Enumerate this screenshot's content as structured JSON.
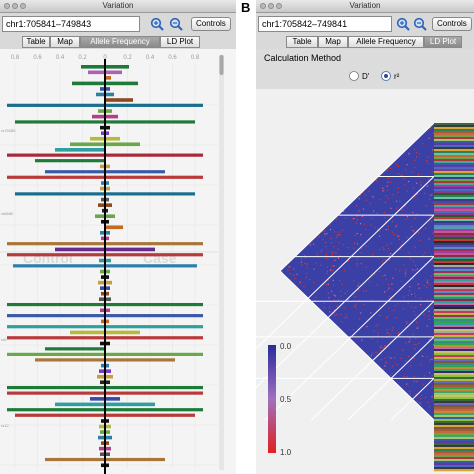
{
  "panel_labels": {
    "a": "",
    "b": "B"
  },
  "panelA": {
    "window_title": "Variation",
    "region": "chr1:705841–749843",
    "controls_label": "Controls",
    "tabs": [
      {
        "label": "Table",
        "selected": false
      },
      {
        "label": "Map",
        "selected": false
      },
      {
        "label": "Allele Frequency",
        "selected": true
      },
      {
        "label": "LD Plot",
        "selected": false
      }
    ],
    "axis_ticks": [
      "0.8",
      "0.6",
      "0.4",
      "0.2",
      "0",
      "0.2",
      "0.4",
      "0.6",
      "0.8"
    ],
    "watermark": {
      "left": "Control",
      "right": "Case"
    },
    "side_labels": [
      "rs75086",
      "rs6680",
      "rs5",
      "rs12"
    ],
    "bars": [
      {
        "freq": 0.24,
        "side": "both",
        "color": "#1f7a3a"
      },
      {
        "freq": 0.17,
        "side": "both",
        "color": "#b05fb6"
      },
      {
        "freq": 0.06,
        "side": "right",
        "color": "#c46a1f"
      },
      {
        "freq": 0.33,
        "side": "both",
        "color": "#1f7a3a"
      },
      {
        "freq": 0.05,
        "side": "both",
        "color": "#3a4aa8"
      },
      {
        "freq": 0.09,
        "side": "both",
        "color": "#2e7ea8"
      },
      {
        "freq": 0.28,
        "side": "right",
        "color": "#8a4a1f"
      },
      {
        "freq": 0.98,
        "side": "both",
        "color": "#1a6d8c"
      },
      {
        "freq": 0.07,
        "side": "both",
        "color": "#6aa64a"
      },
      {
        "freq": 0.13,
        "side": "both",
        "color": "#b83b8c"
      },
      {
        "freq": 0.9,
        "side": "both",
        "color": "#1f7a3a"
      },
      {
        "freq": 0.05,
        "side": "both",
        "color": "#111111"
      },
      {
        "freq": 0.04,
        "side": "both",
        "color": "#7a3bc4"
      },
      {
        "freq": 0.15,
        "side": "both",
        "color": "#b8b83b"
      },
      {
        "freq": 0.35,
        "side": "both",
        "color": "#6aa64a"
      },
      {
        "freq": 0.5,
        "side": "left",
        "color": "#2e9e9e"
      },
      {
        "freq": 0.98,
        "side": "both",
        "color": "#a82a3a"
      },
      {
        "freq": 0.7,
        "side": "left",
        "color": "#1f7a3a"
      },
      {
        "freq": 0.05,
        "side": "both",
        "color": "#c4a03b"
      },
      {
        "freq": 0.6,
        "side": "both",
        "color": "#3a5aa8"
      },
      {
        "freq": 0.98,
        "side": "both",
        "color": "#b83b3b"
      },
      {
        "freq": 0.04,
        "side": "both",
        "color": "#2e7ea8"
      },
      {
        "freq": 0.05,
        "side": "both",
        "color": "#c4a03b"
      },
      {
        "freq": 0.9,
        "side": "both",
        "color": "#1a6d8c"
      },
      {
        "freq": 0.04,
        "side": "both",
        "color": "#555555"
      },
      {
        "freq": 0.07,
        "side": "both",
        "color": "#8a4a1f"
      },
      {
        "freq": 0.03,
        "side": "both",
        "color": "#222222"
      },
      {
        "freq": 0.1,
        "side": "both",
        "color": "#6aa64a"
      },
      {
        "freq": 0.04,
        "side": "both",
        "color": "#111111"
      },
      {
        "freq": 0.18,
        "side": "right",
        "color": "#c46a1f"
      },
      {
        "freq": 0.05,
        "side": "both",
        "color": "#2e7ea8"
      },
      {
        "freq": 0.04,
        "side": "both",
        "color": "#b83b8c"
      },
      {
        "freq": 0.98,
        "side": "both",
        "color": "#a8763b"
      },
      {
        "freq": 0.5,
        "side": "both",
        "color": "#6a2a8c"
      },
      {
        "freq": 0.98,
        "side": "both",
        "color": "#b83b3b"
      },
      {
        "freq": 0.06,
        "side": "both",
        "color": "#2e9e9e"
      },
      {
        "freq": 0.92,
        "side": "both",
        "color": "#2e7ea8"
      },
      {
        "freq": 0.05,
        "side": "both",
        "color": "#6aa64a"
      },
      {
        "freq": 0.04,
        "side": "both",
        "color": "#111111"
      },
      {
        "freq": 0.07,
        "side": "both",
        "color": "#c4a03b"
      },
      {
        "freq": 0.05,
        "side": "both",
        "color": "#3a4aa8"
      },
      {
        "freq": 0.04,
        "side": "both",
        "color": "#8a4a1f"
      },
      {
        "freq": 0.06,
        "side": "both",
        "color": "#555555"
      },
      {
        "freq": 0.98,
        "side": "both",
        "color": "#1f7a3a"
      },
      {
        "freq": 0.05,
        "side": "both",
        "color": "#b83b8c"
      },
      {
        "freq": 0.98,
        "side": "both",
        "color": "#3a5aa8"
      },
      {
        "freq": 0.04,
        "side": "both",
        "color": "#c46a1f"
      },
      {
        "freq": 0.98,
        "side": "both",
        "color": "#2e9e9e"
      },
      {
        "freq": 0.35,
        "side": "both",
        "color": "#b8b83b"
      },
      {
        "freq": 0.98,
        "side": "both",
        "color": "#b83b3b"
      },
      {
        "freq": 0.05,
        "side": "both",
        "color": "#111111"
      },
      {
        "freq": 0.6,
        "side": "left",
        "color": "#1f7a3a"
      },
      {
        "freq": 0.98,
        "side": "both",
        "color": "#6aa64a"
      },
      {
        "freq": 0.7,
        "side": "both",
        "color": "#a8763b"
      },
      {
        "freq": 0.04,
        "side": "both",
        "color": "#2e7ea8"
      },
      {
        "freq": 0.06,
        "side": "both",
        "color": "#7a3bc4"
      },
      {
        "freq": 0.08,
        "side": "both",
        "color": "#c4a03b"
      },
      {
        "freq": 0.05,
        "side": "both",
        "color": "#222222"
      },
      {
        "freq": 0.98,
        "side": "both",
        "color": "#1f7a3a"
      },
      {
        "freq": 0.98,
        "side": "both",
        "color": "#b83b3b"
      },
      {
        "freq": 0.15,
        "side": "both",
        "color": "#3a4aa8"
      },
      {
        "freq": 0.5,
        "side": "both",
        "color": "#2e9e9e"
      },
      {
        "freq": 0.98,
        "side": "both",
        "color": "#1f7a3a"
      },
      {
        "freq": 0.9,
        "side": "both",
        "color": "#b83b3b"
      },
      {
        "freq": 0.04,
        "side": "both",
        "color": "#111111"
      },
      {
        "freq": 0.06,
        "side": "both",
        "color": "#b8b83b"
      },
      {
        "freq": 0.05,
        "side": "both",
        "color": "#6aa64a"
      },
      {
        "freq": 0.07,
        "side": "both",
        "color": "#2e7ea8"
      },
      {
        "freq": 0.04,
        "side": "both",
        "color": "#8a4a1f"
      },
      {
        "freq": 0.06,
        "side": "both",
        "color": "#b83b8c"
      },
      {
        "freq": 0.05,
        "side": "both",
        "color": "#555555"
      },
      {
        "freq": 0.6,
        "side": "both",
        "color": "#a8763b"
      },
      {
        "freq": 0.04,
        "side": "both",
        "color": "#111111"
      }
    ]
  },
  "panelB": {
    "window_title": "Variation",
    "region": "chr1:705842–749841",
    "controls_label": "Controls",
    "tabs": [
      {
        "label": "Table",
        "selected": false
      },
      {
        "label": "Map",
        "selected": false
      },
      {
        "label": "Allele Frequency",
        "selected": false
      },
      {
        "label": "LD Plot",
        "selected": true
      }
    ],
    "calc_method_label": "Calculation Method",
    "options": [
      {
        "label": "D'",
        "selected": false
      },
      {
        "label": "r²",
        "selected": true
      }
    ],
    "legend": {
      "max": "0.0",
      "mid": "0.5",
      "min": "1.0"
    },
    "colors": {
      "ld_base": "#3a40a6",
      "ld_high": "#d23a3a",
      "legend_top": "#2a2a9a",
      "legend_mid": "#a070c0",
      "legend_bottom": "#e02020"
    },
    "stripes": [
      "#3a6a3a",
      "#c43a5a",
      "#4a4aa6",
      "#6aa64a",
      "#c48a3a",
      "#2e9e9e",
      "#8a3a8a",
      "#3a3a3a",
      "#b8b83b",
      "#5a8ac4",
      "#a83a3a",
      "#3aa66a",
      "#c46aa6",
      "#2a5a2a",
      "#d6a63a",
      "#6a6ac4",
      "#9e2e5a",
      "#4aa6a6",
      "#a6c46a",
      "#3a2a6a",
      "#c43a3a",
      "#2e7e5a",
      "#7a5a3a",
      "#5ac46a",
      "#a63aa6",
      "#3a5aa6",
      "#c4c46a",
      "#2a2a2a",
      "#6ac4a6",
      "#a65a3a",
      "#3a8a8a",
      "#c45a8a",
      "#5a3aa6",
      "#8ac43a",
      "#a6a6a6",
      "#3a3a8a",
      "#c46a3a",
      "#2ea64a",
      "#8a2a4a",
      "#4a6ac4"
    ]
  }
}
